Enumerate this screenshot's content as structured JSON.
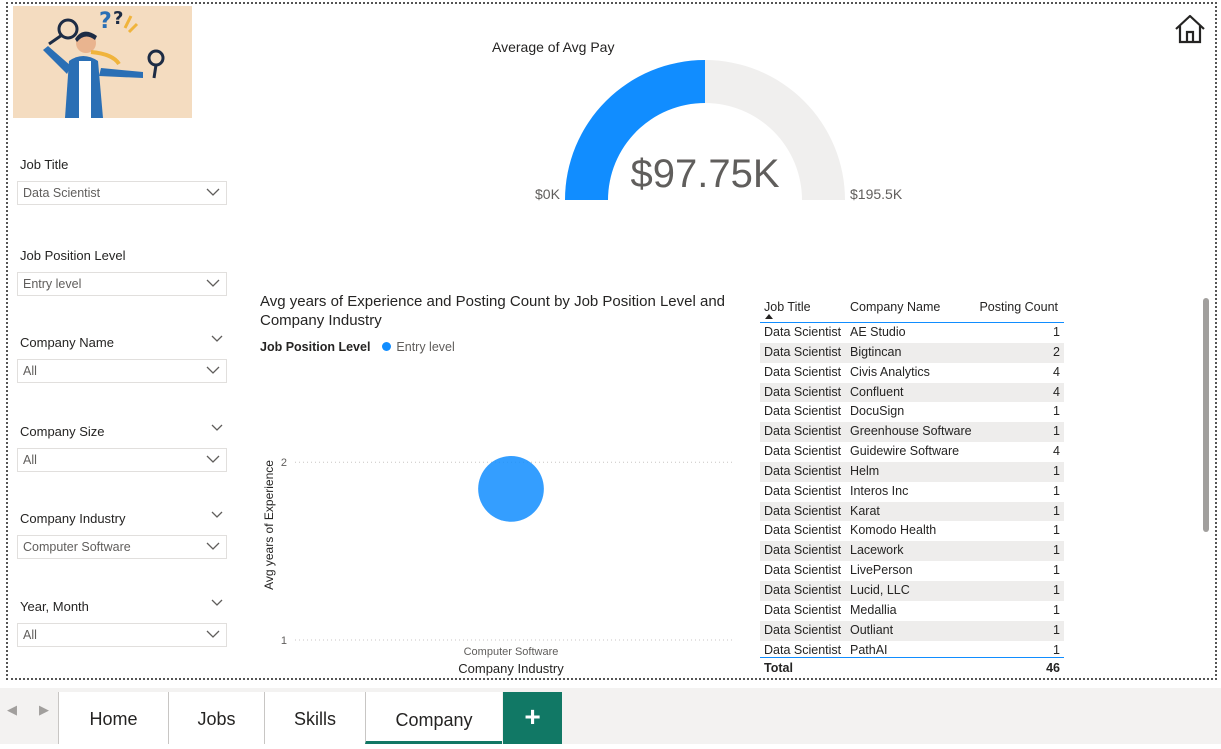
{
  "slicers": [
    {
      "title": "Job Title",
      "value": "Data Scientist",
      "has_header_chevron": false
    },
    {
      "title": "Job Position Level",
      "value": "Entry level",
      "has_header_chevron": false
    },
    {
      "title": "Company Name",
      "value": "All",
      "has_header_chevron": true
    },
    {
      "title": "Company Size",
      "value": "All",
      "has_header_chevron": true
    },
    {
      "title": "Company Industry",
      "value": "Computer Software",
      "has_header_chevron": true
    },
    {
      "title": "Year, Month",
      "value": "All",
      "has_header_chevron": true
    }
  ],
  "gauge": {
    "title": "Average of Avg Pay",
    "value": 97.75,
    "value_label": "$97.75K",
    "min_label": "$0K",
    "max_label": "$195.5K",
    "min": 0,
    "max": 195.5,
    "fill_color": "#118dff",
    "track_color": "#f0efee"
  },
  "chart_data": {
    "type": "scatter",
    "title": "Avg years of Experience and Posting Count by Job Position Level and Company Industry",
    "legend_title": "Job Position Level",
    "legend": [
      {
        "name": "Entry level",
        "color": "#118dff"
      }
    ],
    "xlabel": "Company Industry",
    "ylabel": "Avg years of Experience",
    "categories": [
      "Computer Software"
    ],
    "y_ticks": [
      1,
      2
    ],
    "ylim": [
      1,
      2.35
    ],
    "points": [
      {
        "category": "Computer Software",
        "y": 1.85,
        "size": 46,
        "series": "Entry level"
      }
    ]
  },
  "table": {
    "columns": [
      "Job Title",
      "Company Name",
      "Posting Count"
    ],
    "rows": [
      [
        "Data Scientist",
        "AE Studio",
        "1"
      ],
      [
        "Data Scientist",
        "Bigtincan",
        "2"
      ],
      [
        "Data Scientist",
        "Civis Analytics",
        "4"
      ],
      [
        "Data Scientist",
        "Confluent",
        "4"
      ],
      [
        "Data Scientist",
        "DocuSign",
        "1"
      ],
      [
        "Data Scientist",
        "Greenhouse Software",
        "1"
      ],
      [
        "Data Scientist",
        "Guidewire Software",
        "4"
      ],
      [
        "Data Scientist",
        "Helm",
        "1"
      ],
      [
        "Data Scientist",
        "Interos Inc",
        "1"
      ],
      [
        "Data Scientist",
        "Karat",
        "1"
      ],
      [
        "Data Scientist",
        "Komodo Health",
        "1"
      ],
      [
        "Data Scientist",
        "Lacework",
        "1"
      ],
      [
        "Data Scientist",
        "LivePerson",
        "1"
      ],
      [
        "Data Scientist",
        "Lucid, LLC",
        "1"
      ],
      [
        "Data Scientist",
        "Medallia",
        "1"
      ],
      [
        "Data Scientist",
        "Outliant",
        "1"
      ],
      [
        "Data Scientist",
        "PathAI",
        "1"
      ]
    ],
    "total_label": "Total",
    "total_value": "46"
  },
  "tabs": [
    {
      "label": "Home",
      "active": false
    },
    {
      "label": "Jobs",
      "active": false
    },
    {
      "label": "Skills",
      "active": false
    },
    {
      "label": "Company",
      "active": true
    }
  ],
  "add_tab_label": "+"
}
